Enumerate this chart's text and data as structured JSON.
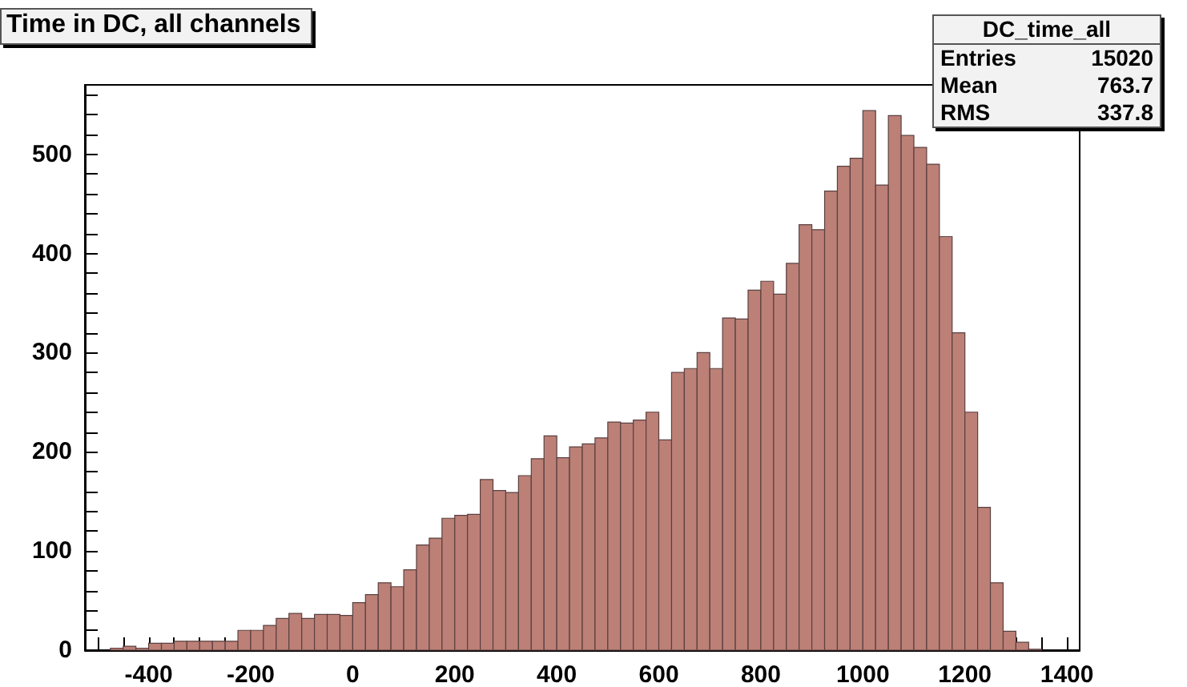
{
  "chart_data": {
    "type": "histogram",
    "title": "Time in DC, all channels",
    "annotations": [
      "DC_time_all",
      "Entries",
      "15020",
      "Mean",
      "763.7",
      "RMS",
      "337.8"
    ],
    "bins": [
      -525,
      -500,
      -475,
      -450,
      -425,
      -400,
      -375,
      -350,
      -325,
      -300,
      -275,
      -250,
      -225,
      -200,
      -175,
      -150,
      -125,
      -100,
      -75,
      -50,
      -25,
      0,
      25,
      50,
      75,
      100,
      125,
      150,
      175,
      200,
      225,
      250,
      275,
      300,
      325,
      350,
      375,
      400,
      425,
      450,
      475,
      500,
      525,
      550,
      575,
      600,
      625,
      650,
      675,
      700,
      725,
      750,
      775,
      800,
      825,
      850,
      875,
      900,
      925,
      950,
      975,
      1000,
      1025,
      1050,
      1075,
      1100,
      1125,
      1150,
      1175,
      1200,
      1225,
      1250,
      1275,
      1300,
      1325,
      1350,
      1375,
      1400,
      1425
    ],
    "values": [
      0,
      0,
      2,
      4,
      2,
      7,
      7,
      9,
      9,
      9,
      9,
      9,
      20,
      20,
      25,
      32,
      37,
      32,
      36,
      36,
      35,
      48,
      56,
      68,
      64,
      81,
      106,
      113,
      133,
      136,
      137,
      172,
      161,
      159,
      176,
      193,
      216,
      194,
      205,
      208,
      214,
      230,
      229,
      232,
      240,
      212,
      280,
      284,
      300,
      284,
      335,
      334,
      363,
      372,
      359,
      390,
      429,
      424,
      463,
      488,
      496,
      544,
      469,
      539,
      519,
      507,
      490,
      417,
      320,
      240,
      144,
      68,
      19,
      8,
      1,
      0,
      0,
      0
    ],
    "color": "#bc8077",
    "xlim": [
      -525,
      1425
    ],
    "xticks": [
      {
        "value": -500,
        "label": null
      },
      {
        "value": -450,
        "label": null
      },
      -400,
      {
        "value": -350,
        "label": null
      },
      {
        "value": -300,
        "label": null
      },
      {
        "value": -250,
        "label": null
      },
      -200,
      {
        "value": -150,
        "label": null
      },
      {
        "value": -100,
        "label": null
      },
      {
        "value": -50,
        "label": null
      },
      0,
      {
        "value": 50,
        "label": null
      },
      {
        "value": 100,
        "label": null
      },
      {
        "value": 150,
        "label": null
      },
      200,
      {
        "value": 250,
        "label": null
      },
      {
        "value": 300,
        "label": null
      },
      {
        "value": 350,
        "label": null
      },
      400,
      {
        "value": 450,
        "label": null
      },
      {
        "value": 500,
        "label": null
      },
      {
        "value": 550,
        "label": null
      },
      600,
      {
        "value": 650,
        "label": null
      },
      {
        "value": 700,
        "label": null
      },
      {
        "value": 750,
        "label": null
      },
      800,
      {
        "value": 850,
        "label": null
      },
      {
        "value": 900,
        "label": null
      },
      {
        "value": 950,
        "label": null
      },
      1000,
      {
        "value": 1050,
        "label": null
      },
      {
        "value": 1100,
        "label": null
      },
      {
        "value": 1150,
        "label": null
      },
      1200,
      {
        "value": 1250,
        "label": null
      },
      {
        "value": 1300,
        "label": null
      },
      {
        "value": 1350,
        "label": null
      },
      1400
    ],
    "ylim": [
      0,
      570
    ],
    "yticks": [
      0,
      {
        "value": 20,
        "label": null
      },
      {
        "value": 40,
        "label": null
      },
      {
        "value": 60,
        "label": null
      },
      {
        "value": 80,
        "label": null
      },
      100,
      {
        "value": 120,
        "label": null
      },
      {
        "value": 140,
        "label": null
      },
      {
        "value": 160,
        "label": null
      },
      {
        "value": 180,
        "label": null
      },
      200,
      {
        "value": 220,
        "label": null
      },
      {
        "value": 240,
        "label": null
      },
      {
        "value": 260,
        "label": null
      },
      {
        "value": 280,
        "label": null
      },
      300,
      {
        "value": 320,
        "label": null
      },
      {
        "value": 340,
        "label": null
      },
      {
        "value": 360,
        "label": null
      },
      {
        "value": 380,
        "label": null
      },
      400,
      {
        "value": 420,
        "label": null
      },
      {
        "value": 440,
        "label": null
      },
      {
        "value": 460,
        "label": null
      },
      {
        "value": 480,
        "label": null
      },
      500,
      {
        "value": 520,
        "label": null
      },
      {
        "value": 540,
        "label": null
      },
      {
        "value": 560,
        "label": null
      }
    ],
    "grid": false
  }
}
